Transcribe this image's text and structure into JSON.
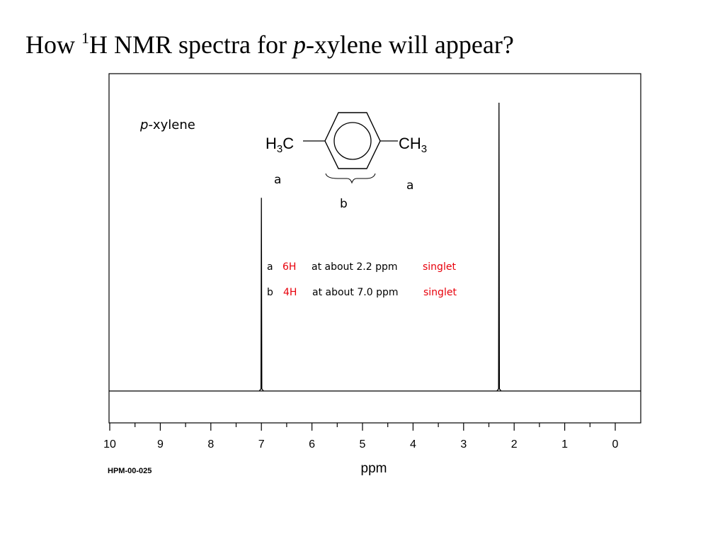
{
  "title": {
    "prefix": "How ",
    "sup": "1",
    "middle": "H NMR spectra for ",
    "italic": "p",
    "suffix": "-xylene will appear?"
  },
  "compound": {
    "label_italic": "p",
    "label_rest": "-xylene",
    "left_group": {
      "main": "H",
      "sub": "3",
      "tail": "C"
    },
    "right_group": {
      "main": "CH",
      "sub": "3"
    },
    "label_a_left": "a",
    "label_a_right": "a",
    "label_b": "b"
  },
  "assignments": [
    {
      "label": "a",
      "count": "6H",
      "text": "at about 2.2 ppm",
      "multiplicity": "singlet"
    },
    {
      "label": "b",
      "count": "4H",
      "text": "at about 7.0 ppm",
      "multiplicity": "singlet"
    }
  ],
  "footer_code": "HPM-00-025",
  "colors": {
    "highlight": "#e8000b",
    "text": "#000000"
  },
  "chart_data": {
    "type": "line",
    "title": "",
    "xlabel": "ppm",
    "ylabel": "",
    "xlim": [
      10,
      0
    ],
    "x_reversed": true,
    "tick_labels": [
      "10",
      "9",
      "8",
      "7",
      "6",
      "5",
      "4",
      "3",
      "2",
      "1",
      "0"
    ],
    "series": [
      {
        "peaks": [
          {
            "ppm": 7.0,
            "relative_intensity": 0.67
          },
          {
            "ppm": 2.3,
            "relative_intensity": 1.0
          }
        ]
      }
    ],
    "grid": false
  }
}
